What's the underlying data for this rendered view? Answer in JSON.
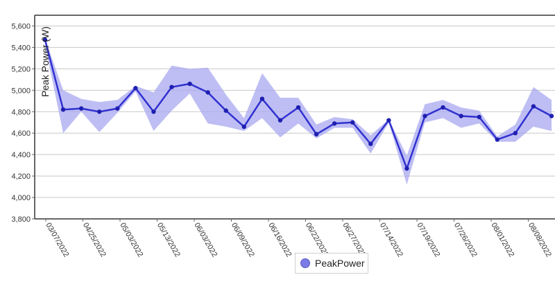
{
  "chart_data": {
    "type": "line",
    "ylabel": "Peak Power (W)",
    "xlabel": "",
    "ylim": [
      3800,
      5700
    ],
    "yticks": [
      3800,
      4000,
      4200,
      4400,
      4600,
      4800,
      5000,
      5200,
      5400,
      5600
    ],
    "ytick_labels": [
      "3,800",
      "4,000",
      "4,200",
      "4,400",
      "4,600",
      "4,800",
      "5,000",
      "5,200",
      "5,400",
      "5,600"
    ],
    "grid": true,
    "legend_position": "bottom-center",
    "x_tick_labels": [
      "03/07/2022",
      "04/25/2022",
      "05/03/2022",
      "05/13/2022",
      "06/03/2022",
      "06/09/2022",
      "06/16/2022",
      "06/22/2022",
      "06/27/2022",
      "07/14/2022",
      "07/19/2022",
      "07/26/2022",
      "08/01/2022",
      "08/08/2022"
    ],
    "series": [
      {
        "name": "PeakPower",
        "color": "#3030d0",
        "band_color": "#a8a8f0",
        "values": [
          5470,
          4820,
          4830,
          4800,
          4830,
          5020,
          4800,
          5030,
          5060,
          4980,
          4810,
          4660,
          4920,
          4720,
          4840,
          4590,
          4690,
          4700,
          4500,
          4720,
          4270,
          4760,
          4840,
          4760,
          4750,
          4540,
          4600,
          4850,
          4760
        ],
        "upper": [
          5480,
          5000,
          4920,
          4890,
          4910,
          5040,
          4980,
          5230,
          5200,
          5210,
          4960,
          4740,
          5160,
          4930,
          4930,
          4680,
          4750,
          4730,
          4580,
          4730,
          4390,
          4870,
          4910,
          4840,
          4810,
          4570,
          4680,
          5030,
          4910
        ],
        "lower": [
          5420,
          4600,
          4800,
          4610,
          4790,
          4990,
          4620,
          4810,
          4970,
          4690,
          4660,
          4620,
          4740,
          4560,
          4690,
          4550,
          4650,
          4650,
          4410,
          4700,
          4120,
          4700,
          4740,
          4650,
          4690,
          4520,
          4520,
          4660,
          4620
        ]
      }
    ]
  },
  "legend": {
    "label": "PeakPower"
  }
}
